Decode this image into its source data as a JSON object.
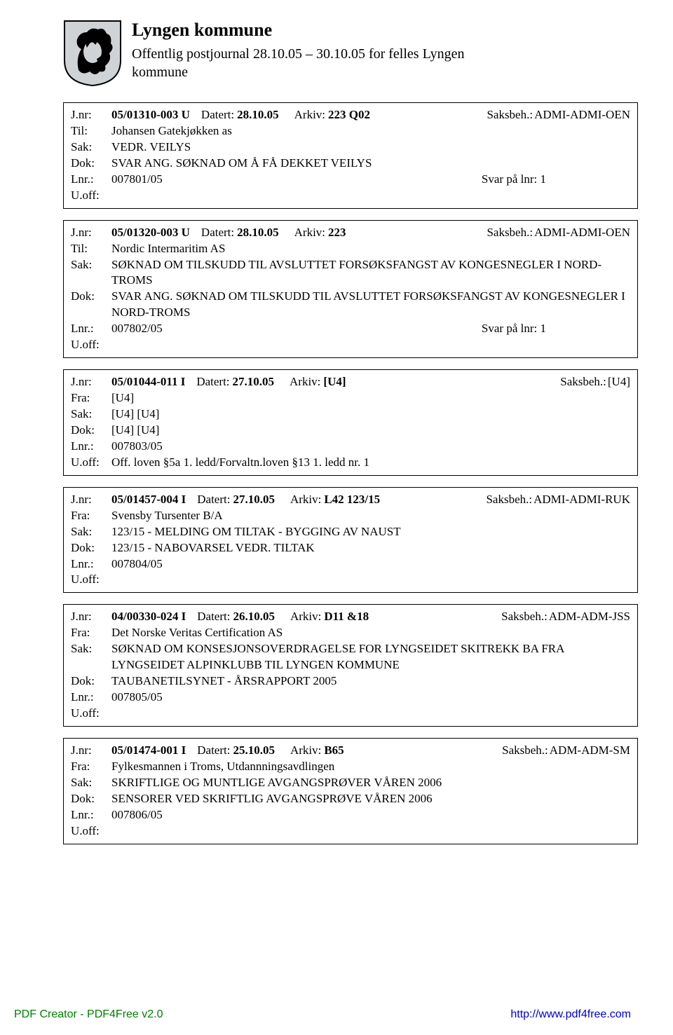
{
  "header": {
    "title": "Lyngen kommune",
    "subtitle": "Offentlig postjournal 28.10.05 – 30.10.05 for felles Lyngen kommune"
  },
  "labels": {
    "jnr": "J.nr:",
    "til": "Til:",
    "fra": "Fra:",
    "sak": "Sak:",
    "dok": "Dok:",
    "lnr": "Lnr.:",
    "uoff": "U.off:",
    "datert": "Datert:",
    "arkiv": "Arkiv:",
    "saksbeh": "Saksbeh.:"
  },
  "entries": [
    {
      "jnr": "05/01310-003 U",
      "datert": "28.10.05",
      "arkiv": "223 Q02",
      "saksbeh": "ADMI-ADMI-OEN",
      "party_label": "Til:",
      "party": "Johansen Gatekjøkken as",
      "sak": "VEDR. VEILYS",
      "dok": "SVAR ANG. SØKNAD OM Å FÅ DEKKET VEILYS",
      "lnr": "007801/05",
      "svar": "Svar på lnr: 1",
      "uoff": ""
    },
    {
      "jnr": "05/01320-003 U",
      "datert": "28.10.05",
      "arkiv": "223",
      "saksbeh": "ADMI-ADMI-OEN",
      "party_label": "Til:",
      "party": "Nordic Intermaritim AS",
      "sak": "SØKNAD OM TILSKUDD TIL AVSLUTTET FORSØKSFANGST AV KONGESNEGLER I NORD-TROMS",
      "dok": "SVAR ANG. SØKNAD OM TILSKUDD TIL AVSLUTTET FORSØKSFANGST AV KONGESNEGLER I NORD-TROMS",
      "lnr": "007802/05",
      "svar": "Svar på lnr: 1",
      "uoff": ""
    },
    {
      "jnr": "05/01044-011 I",
      "datert": "27.10.05",
      "arkiv": "[U4]",
      "saksbeh": "[U4]",
      "party_label": "Fra:",
      "party": "[U4]",
      "sak": "[U4] [U4]",
      "dok": "[U4] [U4]",
      "lnr": "007803/05",
      "svar": "",
      "uoff": "Off. loven §5a 1. ledd/Forvaltn.loven §13 1. ledd nr. 1"
    },
    {
      "jnr": "05/01457-004 I",
      "datert": "27.10.05",
      "arkiv": "L42 123/15",
      "saksbeh": "ADMI-ADMI-RUK",
      "party_label": "Fra:",
      "party": "Svensby Tursenter B/A",
      "sak": "123/15 - MELDING OM TILTAK - BYGGING AV NAUST",
      "dok": "123/15 - NABOVARSEL VEDR. TILTAK",
      "lnr": "007804/05",
      "svar": "",
      "uoff": ""
    },
    {
      "jnr": "04/00330-024 I",
      "datert": "26.10.05",
      "arkiv": "D11 &18",
      "saksbeh": "ADM-ADM-JSS",
      "party_label": "Fra:",
      "party": "Det Norske Veritas Certification AS",
      "sak": "SØKNAD OM KONSESJONSOVERDRAGELSE FOR LYNGSEIDET SKITREKK BA FRA LYNGSEIDET ALPINKLUBB TIL LYNGEN KOMMUNE",
      "dok": "TAUBANETILSYNET - ÅRSRAPPORT 2005",
      "lnr": "007805/05",
      "svar": "",
      "uoff": ""
    },
    {
      "jnr": "05/01474-001 I",
      "datert": "25.10.05",
      "arkiv": "B65",
      "saksbeh": "ADM-ADM-SM",
      "party_label": "Fra:",
      "party": "Fylkesmannen i Troms, Utdannningsavdlingen",
      "sak": "SKRIFTLIGE OG MUNTLIGE AVGANGSPRØVER VÅREN 2006",
      "dok": "SENSORER VED SKRIFTLIG AVGANGSPRØVE VÅREN 2006",
      "lnr": "007806/05",
      "svar": "",
      "uoff": ""
    }
  ],
  "footer": {
    "left": "PDF Creator - PDF4Free v2.0",
    "right": "http://www.pdf4free.com"
  },
  "shield": {
    "shield_fill": "#cfd3d6",
    "shield_stroke": "#000000",
    "horse_fill": "#000000"
  }
}
